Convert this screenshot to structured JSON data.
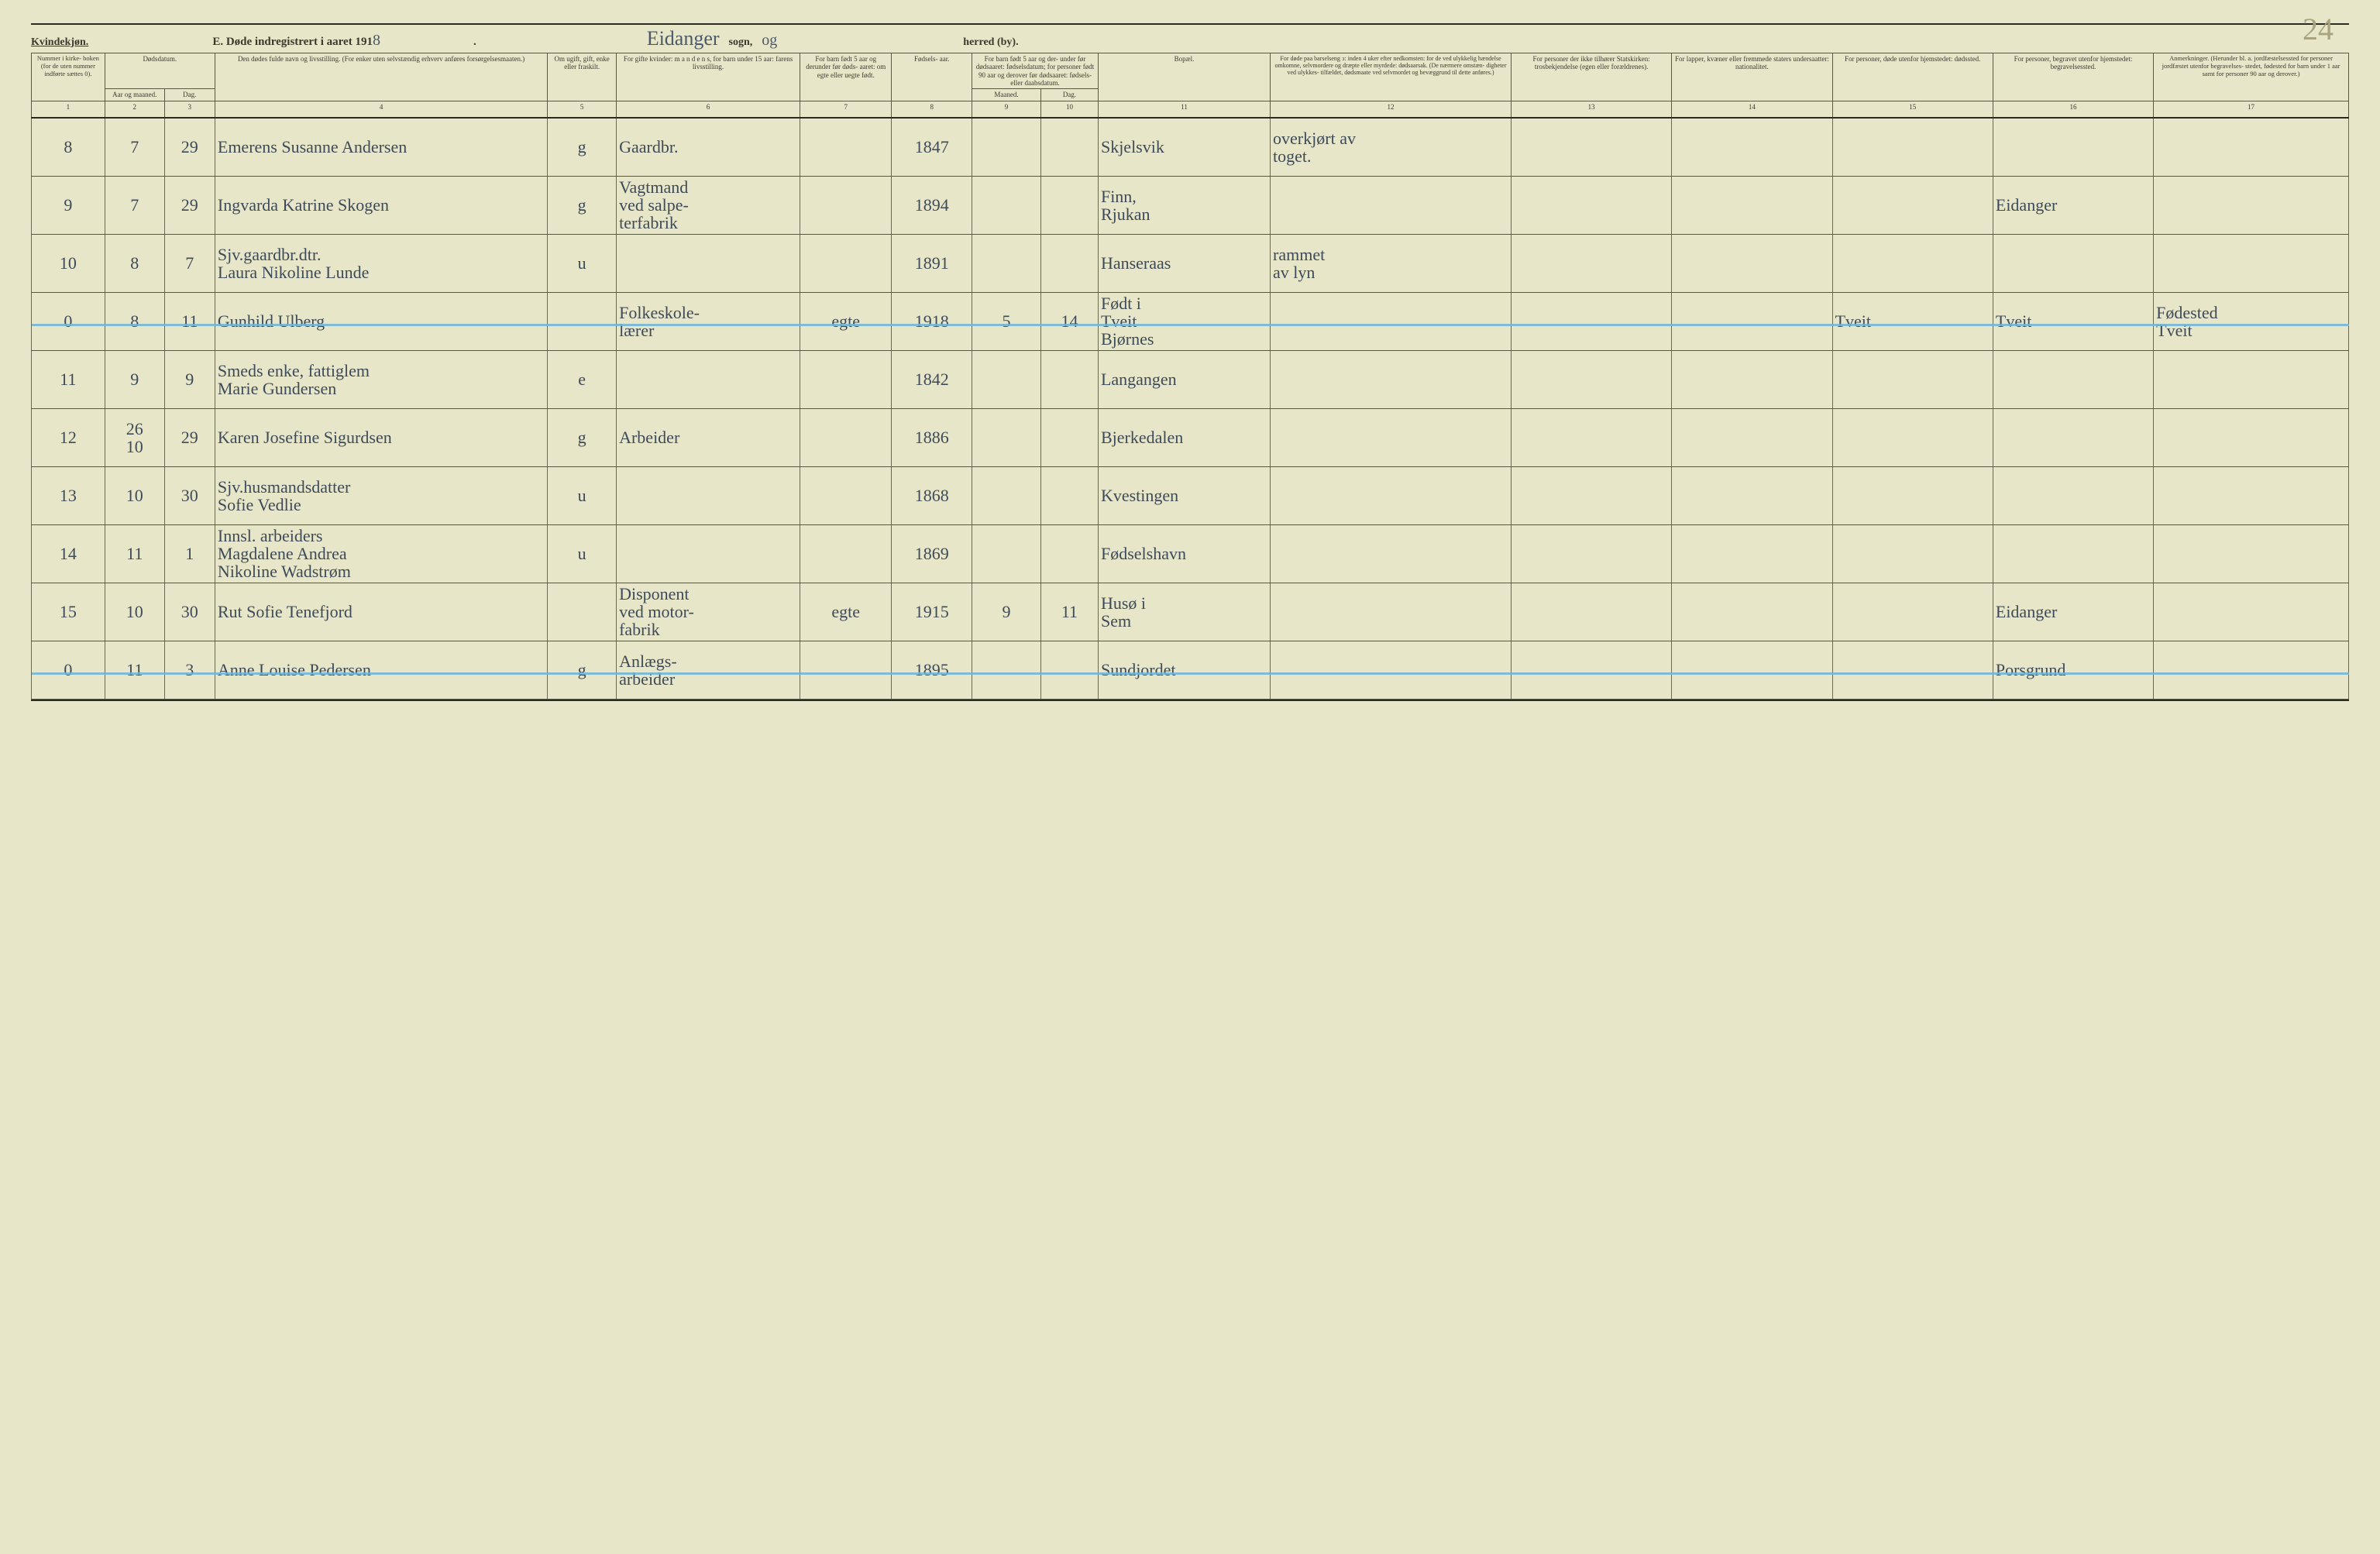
{
  "header": {
    "gender": "Kvindekjøn.",
    "title_prefix": "E.  Døde indregistrert i aaret 191",
    "year_suffix": "8",
    "title_dot": ".",
    "sogn_hand": "Eidanger",
    "sogn_label": "sogn,",
    "sogn_hand2": "og",
    "herred_label": "herred (by).",
    "page_hand": "24"
  },
  "columns": {
    "c1": "Nummer\ni kirke-\nboken\n(for de\nuten\nnummer\nindførte\nsættes\n0).",
    "c2": "Dødsdatum.",
    "c2a": "Aar\nog\nmaaned.",
    "c2b": "Dag.",
    "c4": "Den dødes fulde navn og livsstilling.\n(For enker uten selvstændig erhverv anføres\nforsørgelsesmaaten.)",
    "c5": "Om\nugift,\ngift,\nenke\neller\nfraskilt.",
    "c6": "For gifte kvinder:\nm a n d e n s,\nfor barn under 15 aar:\nfarens livsstilling.",
    "c7": "For barn\nfødt\n5 aar og\nderunder\nfør døds-\naaret:\nom egte\neller\nuegte\nfødt.",
    "c8": "Fødsels-\naar.",
    "c9_10": "For barn født\n5 aar og der-\nunder før\ndødsaaret:\nfødselsdatum;\nfor personer\nfødt 90 aar\nog derover før\ndødsaaret:\nfødsels- eller\ndaabsdatum.",
    "c9a": "Maaned.",
    "c9b": "Dag.",
    "c11": "Bopæl.",
    "c12": "For døde paa barselseng\nↄ: inden 4 uker efter\nnedkomsten:\nfor de ved ulykkelig\nhændelse omkomne,\nselvmordere og\ndræpte eller myrdede:\ndødsaarsak.\n(De nærmere omstæn-\ndigheter ved ulykkes-\ntilfældet, dødsmaate ved\nselvmordet og bevæggrund\ntil dette anføres.)",
    "c13": "For personer\nder ikke tilhører\nStatskirken:\ntrosbekjendelse\n(egen\neller forældrenes).",
    "c14": "For lapper, kvæner\neller fremmede\nstaters undersaatter:\nnationalitet.",
    "c15": "For personer, døde\nutenfor hjemstedet:\ndødssted.",
    "c16": "For personer, begravet\nutenfor hjemstedet:\nbegravelsessted.",
    "c17": "Anmerkninger.\n(Herunder bl. a.\njordfæstelsessted for\npersoner jordfæstet\nutenfor begravelses-\nstedet, fødested for\nbarn under 1 aar\nsamt for personer\n90 aar og derover.)"
  },
  "colnums": [
    "1",
    "2",
    "3",
    "4",
    "5",
    "6",
    "7",
    "8",
    "9",
    "10",
    "11",
    "12",
    "13",
    "14",
    "15",
    "16",
    "17"
  ],
  "widths": {
    "c1": "3.2%",
    "c2": "2.6%",
    "c3": "2.2%",
    "c4": "14.5%",
    "c5": "3%",
    "c6": "8%",
    "c7": "4%",
    "c8": "3.5%",
    "c9": "3%",
    "c10": "2.5%",
    "c11": "7.5%",
    "c12": "10.5%",
    "c13": "7%",
    "c14": "7%",
    "c15": "7%",
    "c16": "7%",
    "c17": "8.5%"
  },
  "rows": [
    {
      "n": "8",
      "m": "7",
      "d": "29",
      "name": "Emerens Susanne Andersen",
      "st": "g",
      "mand": "Gaardbr.",
      "egte": "",
      "aar": "1847",
      "mm": "",
      "dd": "",
      "bopael": "Skjelsvik",
      "aarsak": "overkjørt av\ntoget.",
      "c13": "",
      "c14": "",
      "c15": "",
      "c16": "",
      "c17": "",
      "strike": false
    },
    {
      "n": "9",
      "m": "7",
      "d": "29",
      "name": "Ingvarda Katrine Skogen",
      "st": "g",
      "mand": "Vagtmand\nved salpe-\nterfabrik",
      "egte": "",
      "aar": "1894",
      "mm": "",
      "dd": "",
      "bopael": "Finn,\nRjukan",
      "aarsak": "",
      "c13": "",
      "c14": "",
      "c15": "",
      "c16": "Eidanger",
      "c17": "",
      "strike": false
    },
    {
      "n": "10",
      "m": "8",
      "d": "7",
      "name": "Sjv.gaardbr.dtr.\nLaura Nikoline Lunde",
      "st": "u",
      "mand": "",
      "egte": "",
      "aar": "1891",
      "mm": "",
      "dd": "",
      "bopael": "Hanseraas",
      "aarsak": "rammet\nav lyn",
      "c13": "",
      "c14": "",
      "c15": "",
      "c16": "",
      "c17": "",
      "strike": false
    },
    {
      "n": "0",
      "m": "8",
      "d": "11",
      "name": "Gunhild Ulberg",
      "st": "",
      "mand": "Folkeskole-\nlærer",
      "egte": "egte",
      "aar": "1918",
      "mm": "5",
      "dd": "14",
      "bopael": "Født i\nTveit\nBjørnes",
      "aarsak": "",
      "c13": "",
      "c14": "",
      "c15": "Tveit",
      "c16": "Tveit",
      "c17": "Fødested\nTveit",
      "strike": true
    },
    {
      "n": "11",
      "m": "9",
      "d": "9",
      "name": "Smeds enke, fattiglem\nMarie Gundersen",
      "st": "e",
      "mand": "",
      "egte": "",
      "aar": "1842",
      "mm": "",
      "dd": "",
      "bopael": "Langangen",
      "aarsak": "",
      "c13": "",
      "c14": "",
      "c15": "",
      "c16": "",
      "c17": "",
      "strike": false
    },
    {
      "n": "12",
      "m": "10",
      "d": "29",
      "name": "Karen Josefine Sigurdsen",
      "st": "g",
      "mand": "Arbeider",
      "egte": "",
      "aar": "1886",
      "mm": "",
      "dd": "",
      "bopael": "Bjerkedalen",
      "aarsak": "",
      "c13": "",
      "c14": "",
      "c15": "",
      "c16": "",
      "c17": "",
      "strike": false,
      "m_note": "26"
    },
    {
      "n": "13",
      "m": "10",
      "d": "30",
      "name": "Sjv.husmandsdatter\nSofie Vedlie",
      "st": "u",
      "mand": "",
      "egte": "",
      "aar": "1868",
      "mm": "",
      "dd": "",
      "bopael": "Kvestingen",
      "aarsak": "",
      "c13": "",
      "c14": "",
      "c15": "",
      "c16": "",
      "c17": "",
      "strike": false
    },
    {
      "n": "14",
      "m": "11",
      "d": "1",
      "name": "Innsl. arbeiders\nMagdalene Andrea\nNikoline Wadstrøm",
      "st": "u",
      "mand": "",
      "egte": "",
      "aar": "1869",
      "mm": "",
      "dd": "",
      "bopael": "Fødselshavn",
      "aarsak": "",
      "c13": "",
      "c14": "",
      "c15": "",
      "c16": "",
      "c17": "",
      "strike": false
    },
    {
      "n": "15",
      "m": "10",
      "d": "30",
      "name": "Rut Sofie Tenefjord",
      "st": "",
      "mand": "Disponent\nved motor-\nfabrik",
      "egte": "egte",
      "aar": "1915",
      "mm": "9",
      "dd": "11",
      "bopael": "Husø i\nSem",
      "aarsak": "",
      "c13": "",
      "c14": "",
      "c15": "",
      "c16": "Eidanger",
      "c17": "",
      "strike": false
    },
    {
      "n": "0",
      "m": "11",
      "d": "3",
      "name": "Anne Louise Pedersen",
      "st": "g",
      "mand": "Anlægs-\narbeider",
      "egte": "",
      "aar": "1895",
      "mm": "",
      "dd": "",
      "bopael": "Sundjordet",
      "aarsak": "",
      "c13": "",
      "c14": "",
      "c15": "",
      "c16": "Porsgrund",
      "c17": "",
      "strike": true
    }
  ]
}
